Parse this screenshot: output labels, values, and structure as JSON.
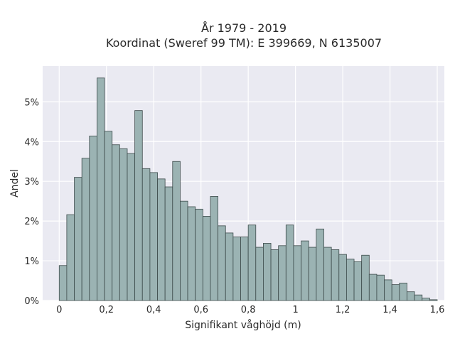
{
  "chart_data": {
    "type": "bar",
    "title_line1": "År 1979 - 2019",
    "title_line2": "Koordinat (Sweref 99 TM): E 399669, N 6135007",
    "xlabel": "Signifikant våghöjd (m)",
    "ylabel": "Andel",
    "xlim": [
      -0.07,
      1.63
    ],
    "ylim": [
      0,
      5.9
    ],
    "grid": true,
    "bar_fill": "#9bb3b3",
    "bar_stroke": "#3c4a4a",
    "plot_background": "#eaeaf2",
    "x_ticks": [
      0,
      0.2,
      0.4,
      0.6,
      0.8,
      1.0,
      1.2,
      1.4,
      1.6
    ],
    "x_tick_labels": [
      "0",
      "0,2",
      "0,4",
      "0,6",
      "0,8",
      "1",
      "1,2",
      "1,4",
      "1,6"
    ],
    "y_ticks": [
      0,
      1,
      2,
      3,
      4,
      5
    ],
    "y_tick_labels": [
      "0%",
      "1%",
      "2%",
      "3%",
      "4%",
      "5%"
    ],
    "bin_width": 0.032,
    "bins_start": 0.0,
    "values": [
      0.88,
      2.16,
      3.1,
      3.58,
      4.14,
      5.6,
      4.26,
      3.92,
      3.82,
      3.7,
      4.78,
      3.32,
      3.22,
      3.06,
      2.86,
      3.5,
      2.5,
      2.36,
      2.3,
      2.12,
      2.62,
      1.88,
      1.7,
      1.6,
      1.6,
      1.9,
      1.34,
      1.44,
      1.28,
      1.38,
      1.9,
      1.38,
      1.5,
      1.34,
      1.8,
      1.34,
      1.28,
      1.16,
      1.04,
      0.98,
      1.14,
      0.66,
      0.64,
      0.52,
      0.4,
      0.44,
      0.22,
      0.14,
      0.06,
      0.02
    ]
  }
}
